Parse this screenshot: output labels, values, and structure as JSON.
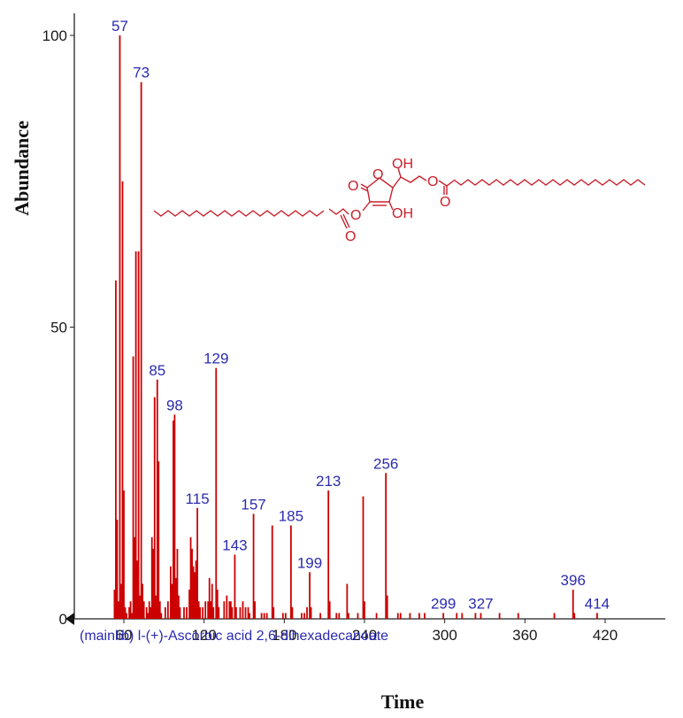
{
  "chart_data": {
    "type": "bar",
    "title": "",
    "caption": "(mainlib) l-(+)-Ascorbic acid 2,6-dihexadecanoate",
    "xlabel": "Time",
    "ylabel": "Abundance",
    "xlim": [
      30,
      460
    ],
    "ylim": [
      0,
      100
    ],
    "x_ticks": [
      "60",
      "120",
      "180",
      "240",
      "300",
      "360",
      "420"
    ],
    "x_tick_values": [
      60,
      120,
      180,
      240,
      300,
      360,
      420
    ],
    "y_ticks": [
      "0",
      "50",
      "100"
    ],
    "y_tick_values": [
      0,
      50,
      100
    ],
    "bar_color": "#cc0000",
    "label_color": "#2b2bb0",
    "peaks": [
      [
        53,
        5
      ],
      [
        54,
        58
      ],
      [
        55,
        17
      ],
      [
        56,
        3
      ],
      [
        57,
        100
      ],
      [
        58,
        6
      ],
      [
        59,
        75
      ],
      [
        60,
        22
      ],
      [
        61,
        2
      ],
      [
        62,
        1
      ],
      [
        64,
        2
      ],
      [
        65,
        3
      ],
      [
        66,
        1
      ],
      [
        67,
        45
      ],
      [
        68,
        14
      ],
      [
        69,
        63
      ],
      [
        70,
        10
      ],
      [
        71,
        63
      ],
      [
        72,
        4
      ],
      [
        73,
        92
      ],
      [
        74,
        6
      ],
      [
        75,
        3
      ],
      [
        77,
        2
      ],
      [
        78,
        1
      ],
      [
        79,
        3
      ],
      [
        80,
        2
      ],
      [
        81,
        14
      ],
      [
        82,
        12
      ],
      [
        83,
        38
      ],
      [
        84,
        4
      ],
      [
        85,
        41
      ],
      [
        86,
        27
      ],
      [
        87,
        3
      ],
      [
        88,
        1
      ],
      [
        91,
        2
      ],
      [
        93,
        3
      ],
      [
        95,
        9
      ],
      [
        96,
        6
      ],
      [
        97,
        34
      ],
      [
        98,
        35
      ],
      [
        99,
        7
      ],
      [
        100,
        12
      ],
      [
        101,
        4
      ],
      [
        102,
        2
      ],
      [
        105,
        2
      ],
      [
        107,
        2
      ],
      [
        109,
        5
      ],
      [
        110,
        14
      ],
      [
        111,
        12
      ],
      [
        112,
        9
      ],
      [
        113,
        8
      ],
      [
        114,
        10
      ],
      [
        115,
        19
      ],
      [
        116,
        3
      ],
      [
        117,
        2
      ],
      [
        119,
        2
      ],
      [
        121,
        3
      ],
      [
        123,
        3
      ],
      [
        124,
        7
      ],
      [
        125,
        3
      ],
      [
        126,
        6
      ],
      [
        127,
        2
      ],
      [
        129,
        43
      ],
      [
        130,
        5
      ],
      [
        131,
        2
      ],
      [
        135,
        3
      ],
      [
        137,
        4
      ],
      [
        139,
        3
      ],
      [
        140,
        3
      ],
      [
        141,
        2
      ],
      [
        143,
        11
      ],
      [
        144,
        2
      ],
      [
        147,
        2
      ],
      [
        149,
        3
      ],
      [
        151,
        2
      ],
      [
        153,
        2
      ],
      [
        154,
        1
      ],
      [
        157,
        18
      ],
      [
        158,
        3
      ],
      [
        163,
        1
      ],
      [
        165,
        1
      ],
      [
        167,
        1
      ],
      [
        171,
        16
      ],
      [
        172,
        2
      ],
      [
        179,
        1
      ],
      [
        181,
        1
      ],
      [
        185,
        16
      ],
      [
        186,
        2
      ],
      [
        193,
        1
      ],
      [
        195,
        1
      ],
      [
        197,
        2
      ],
      [
        199,
        8
      ],
      [
        200,
        2
      ],
      [
        207,
        1
      ],
      [
        213,
        22
      ],
      [
        214,
        3
      ],
      [
        219,
        1
      ],
      [
        221,
        1
      ],
      [
        227,
        6
      ],
      [
        228,
        1
      ],
      [
        235,
        1
      ],
      [
        239,
        21
      ],
      [
        240,
        3
      ],
      [
        249,
        1
      ],
      [
        256,
        25
      ],
      [
        257,
        4
      ],
      [
        265,
        1
      ],
      [
        267,
        1
      ],
      [
        274,
        1
      ],
      [
        281,
        1
      ],
      [
        285,
        1
      ],
      [
        299,
        1
      ],
      [
        309,
        1
      ],
      [
        313,
        1
      ],
      [
        323,
        1
      ],
      [
        327,
        1
      ],
      [
        341,
        1
      ],
      [
        355,
        1
      ],
      [
        382,
        1
      ],
      [
        396,
        5
      ],
      [
        397,
        1
      ],
      [
        414,
        1
      ]
    ],
    "peak_labels": [
      {
        "x": 57,
        "y": 100,
        "text": "57"
      },
      {
        "x": 73,
        "y": 92,
        "text": "73"
      },
      {
        "x": 85,
        "y": 41,
        "text": "85"
      },
      {
        "x": 98,
        "y": 35,
        "text": "98"
      },
      {
        "x": 115,
        "y": 19,
        "text": "115"
      },
      {
        "x": 129,
        "y": 43,
        "text": "129"
      },
      {
        "x": 143,
        "y": 11,
        "text": "143"
      },
      {
        "x": 157,
        "y": 18,
        "text": "157"
      },
      {
        "x": 185,
        "y": 16,
        "text": "185"
      },
      {
        "x": 199,
        "y": 8,
        "text": "199"
      },
      {
        "x": 213,
        "y": 22,
        "text": "213"
      },
      {
        "x": 256,
        "y": 25,
        "text": "256"
      },
      {
        "x": 299,
        "y": 1,
        "text": "299"
      },
      {
        "x": 327,
        "y": 1,
        "text": "327"
      },
      {
        "x": 396,
        "y": 5,
        "text": "396"
      },
      {
        "x": 414,
        "y": 1,
        "text": "414"
      }
    ]
  },
  "structure": {
    "color": "#c8202a",
    "labels": [
      "O",
      "O",
      "OH",
      "O",
      "O",
      "OH",
      "O",
      "O"
    ]
  }
}
